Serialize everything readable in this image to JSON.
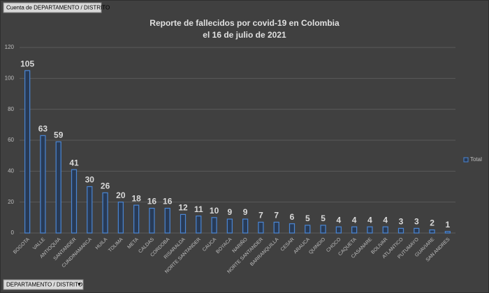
{
  "ui": {
    "value_field": "Cuenta de DEPARTAMENTO / DISTRITO",
    "axis_field": "DEPARTAMENTO / DISTRITO"
  },
  "chart_data": {
    "type": "bar",
    "title": "Reporte de fallecidos por covid-19 en Colombia",
    "subtitle": "el 16 de julio de 2021",
    "categories": [
      "BOGOTA",
      "VALLE",
      "ANTIOQUIA",
      "SANTANDER",
      "CUNDINAMARCA",
      "HUILA",
      "TOLIMA",
      "META",
      "CALDAS",
      "CORDOBA",
      "RISARALDA",
      "NORTE SANTANDER",
      "CAUCA",
      "BOYACA",
      "NARIÑO",
      "NORTE SANTANDER",
      "BARRANQUILLA",
      "CESAR",
      "ARAUCA",
      "QUINDIO",
      "CHOCO",
      "CAQUETA",
      "CASANARE",
      "BOLIVAR",
      "ATLANTICO",
      "PUTUMAYO",
      "GUAVIARE",
      "SAN ANDRES"
    ],
    "series": [
      {
        "name": "Total",
        "color": "#4a86d4",
        "values": [
          105,
          63,
          59,
          41,
          30,
          26,
          20,
          18,
          16,
          16,
          12,
          11,
          10,
          9,
          9,
          7,
          7,
          6,
          5,
          5,
          4,
          4,
          4,
          4,
          3,
          3,
          2,
          1
        ]
      }
    ],
    "ylim": [
      0,
      120
    ],
    "yticks": [
      0,
      20,
      40,
      60,
      80,
      100,
      120
    ],
    "grid": true,
    "legend": "right",
    "data_labels": true
  }
}
